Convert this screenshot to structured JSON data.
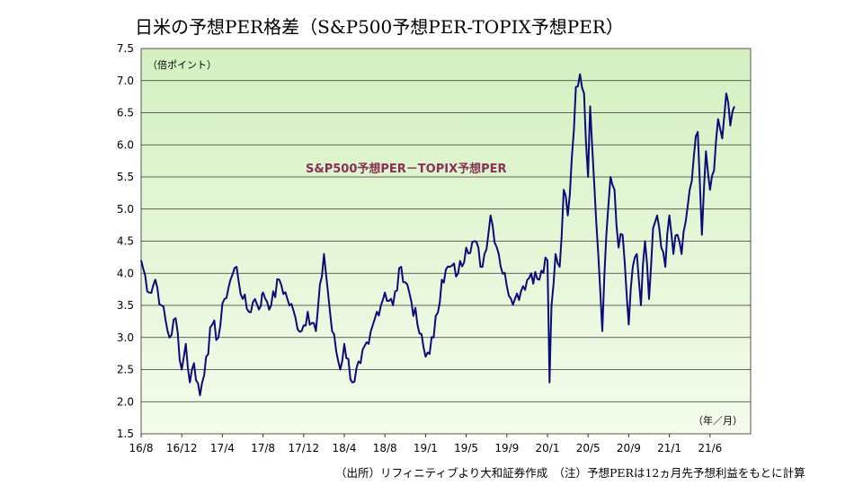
{
  "chart_data": {
    "type": "line",
    "title": "日米の予想PER格差（S&P500予想PER-TOPIX予想PER）",
    "ylabel": "（倍ポイント）",
    "xlabel": "（年／月）",
    "ylim": [
      1.5,
      7.5
    ],
    "yticks": [
      "1.5",
      "2.0",
      "2.5",
      "3.0",
      "3.5",
      "4.0",
      "4.5",
      "5.0",
      "5.5",
      "6.0",
      "6.5",
      "7.0",
      "7.5"
    ],
    "categories": [
      "16/8",
      "16/12",
      "17/4",
      "17/8",
      "17/12",
      "18/4",
      "18/8",
      "19/1",
      "19/5",
      "19/9",
      "20/1",
      "20/5",
      "20/9",
      "21/1",
      "21/6"
    ],
    "annotation": "S&P500予想PER－TOPIX予想PER",
    "grid": true,
    "series": [
      {
        "name": "S&P500予想PER－TOPIX予想PER",
        "color": "#0b0b7a",
        "x": [
          0,
          0.2,
          0.35,
          0.5,
          0.7,
          0.85,
          1.0,
          1.1,
          1.2,
          1.3,
          1.45,
          1.6,
          1.75,
          1.9,
          2.05,
          2.2,
          2.35,
          2.5,
          2.65,
          2.8,
          2.95,
          3.0,
          3.2,
          3.4,
          3.6,
          3.8,
          3.95,
          4.1,
          4.3,
          4.5,
          4.7,
          4.9,
          5.0,
          5.2,
          5.4,
          5.6,
          5.8,
          6.0,
          6.2,
          6.4,
          6.6,
          6.8,
          7.0,
          7.2,
          7.4,
          7.6,
          7.8,
          8.0,
          8.2,
          8.4,
          8.6,
          8.8,
          9.0,
          9.2,
          9.4,
          9.6,
          9.8,
          10.0,
          10.05,
          10.1,
          10.2,
          10.3,
          10.4,
          10.5,
          10.6,
          10.7,
          10.8,
          10.9,
          11.0,
          11.05,
          11.15,
          11.25,
          11.35,
          11.45,
          11.55,
          11.65,
          11.75,
          11.85,
          12.0,
          12.1,
          12.2,
          12.3,
          12.4,
          12.5,
          12.6,
          12.7,
          12.8,
          12.9,
          13.0,
          13.1,
          13.2,
          13.3,
          13.4,
          13.5,
          13.6,
          13.7,
          13.8,
          13.9,
          14.0,
          14.1,
          14.2,
          14.3,
          14.4,
          14.5,
          14.6
        ],
        "values": [
          4.2,
          3.7,
          3.9,
          3.5,
          3.0,
          3.3,
          2.5,
          2.9,
          2.3,
          2.6,
          2.1,
          2.7,
          3.2,
          3.0,
          3.6,
          3.9,
          4.1,
          3.6,
          3.4,
          3.6,
          3.5,
          3.7,
          3.5,
          3.9,
          3.6,
          3.3,
          3.1,
          3.4,
          3.1,
          4.3,
          3.1,
          2.5,
          2.9,
          2.3,
          2.6,
          2.9,
          3.4,
          3.7,
          3.5,
          4.1,
          3.7,
          3.2,
          2.7,
          3.0,
          3.9,
          4.1,
          4.0,
          4.4,
          4.5,
          4.1,
          4.9,
          4.3,
          3.8,
          3.6,
          3.8,
          4.0,
          3.9,
          4.2,
          2.3,
          3.5,
          4.3,
          4.1,
          5.3,
          4.9,
          5.8,
          6.9,
          7.1,
          6.8,
          5.5,
          6.6,
          5.4,
          4.3,
          3.1,
          4.6,
          5.5,
          5.3,
          4.4,
          4.6,
          3.2,
          4.1,
          4.3,
          3.5,
          4.5,
          3.6,
          4.7,
          4.9,
          4.4,
          4.1,
          4.9,
          4.3,
          4.6,
          4.3,
          4.8,
          5.3,
          5.8,
          6.2,
          4.6,
          5.9,
          5.3,
          5.6,
          6.4,
          6.1,
          6.8,
          6.3,
          6.6
        ]
      }
    ]
  },
  "footer": "（出所）リフィニティブより大和証券作成　（注）予想PERは12ヵ月先予想利益をもとに計算"
}
